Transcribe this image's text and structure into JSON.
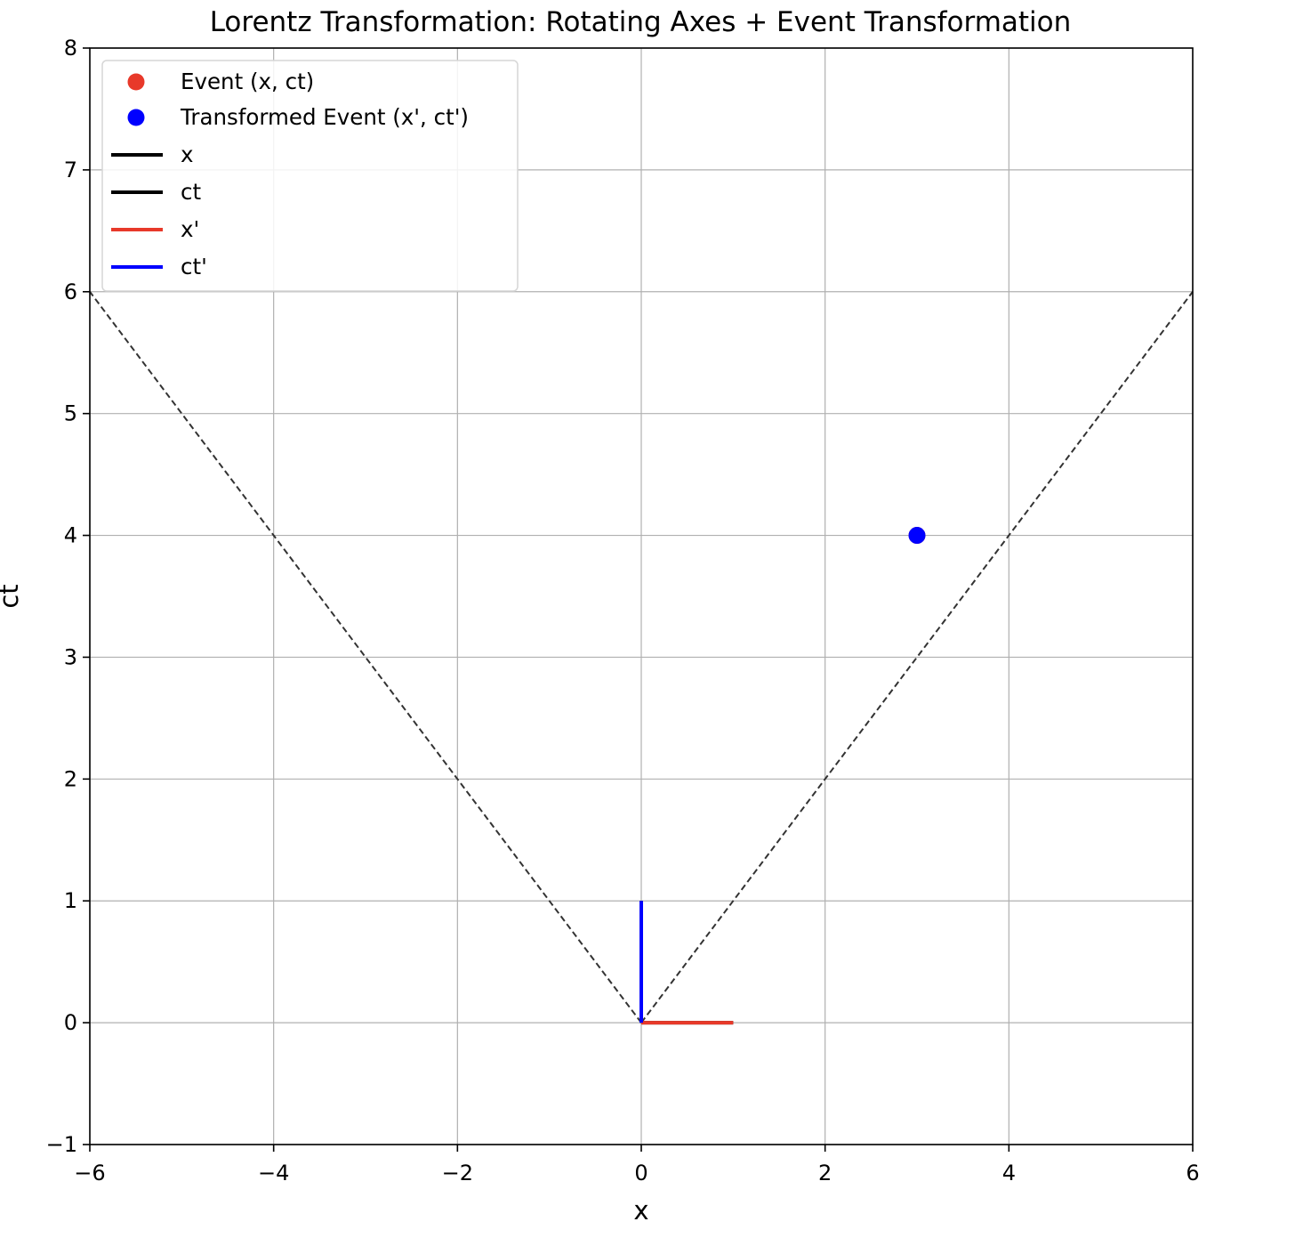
{
  "chart_data": {
    "type": "line",
    "title": "Lorentz Transformation: Rotating Axes + Event Transformation",
    "xlabel": "x",
    "ylabel": "ct",
    "xlim": [
      -6,
      6
    ],
    "ylim": [
      -1,
      8
    ],
    "xticks": [
      -6,
      -4,
      -2,
      0,
      2,
      4,
      6
    ],
    "yticks": [
      -1,
      0,
      1,
      2,
      3,
      4,
      5,
      6,
      7,
      8
    ],
    "xtick_labels": [
      "−6",
      "−4",
      "−2",
      "0",
      "2",
      "4",
      "6"
    ],
    "ytick_labels": [
      "−1",
      "0",
      "1",
      "2",
      "3",
      "4",
      "5",
      "6",
      "7",
      "8"
    ],
    "grid": true,
    "legend_position": "top-left",
    "legend": [
      {
        "label": "Event (x, ct)",
        "kind": "marker",
        "color": "#e8392a"
      },
      {
        "label": "Transformed Event (x', ct')",
        "kind": "marker",
        "color": "#0000ff"
      },
      {
        "label": "x",
        "kind": "line",
        "color": "#000000"
      },
      {
        "label": "ct",
        "kind": "line",
        "color": "#000000"
      },
      {
        "label": "x'",
        "kind": "line",
        "color": "#e8392a"
      },
      {
        "label": "ct'",
        "kind": "line",
        "color": "#0000ff"
      }
    ],
    "series": [
      {
        "name": "x",
        "color": "#000000",
        "x": [
          0,
          1
        ],
        "y": [
          0,
          0
        ]
      },
      {
        "name": "ct",
        "color": "#000000",
        "x": [
          0,
          0
        ],
        "y": [
          0,
          1
        ]
      },
      {
        "name": "x'",
        "color": "#e8392a",
        "x": [
          0,
          1
        ],
        "y": [
          0,
          0
        ]
      },
      {
        "name": "ct'",
        "color": "#0000ff",
        "x": [
          0,
          0
        ],
        "y": [
          0,
          1
        ]
      }
    ],
    "light_cone": [
      {
        "x": [
          0,
          6
        ],
        "y": [
          0,
          6
        ],
        "color": "#333333",
        "style": "dashed"
      },
      {
        "x": [
          0,
          -6
        ],
        "y": [
          0,
          6
        ],
        "color": "#333333",
        "style": "dashed"
      }
    ],
    "events": [
      {
        "name": "Event (x, ct)",
        "x": 3,
        "y": 4,
        "color": "#e8392a"
      },
      {
        "name": "Transformed Event (x', ct')",
        "x": 3,
        "y": 4,
        "color": "#0000ff"
      }
    ]
  }
}
